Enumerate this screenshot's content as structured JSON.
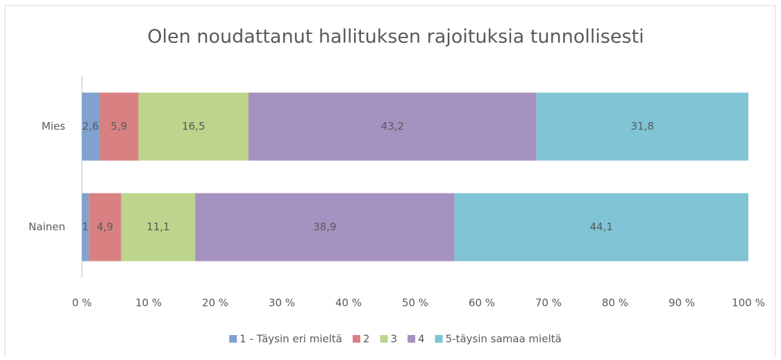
{
  "chart_data": {
    "type": "stacked-barh",
    "title": "Olen noudattanut hallituksen rajoituksia tunnollisesti",
    "categories": [
      "Mies",
      "Nainen"
    ],
    "series": [
      {
        "name": "1 - Täysin eri mieltä",
        "color": "#7fa2cf",
        "values": [
          2.6,
          1
        ],
        "value_labels": [
          "2,6",
          "1"
        ]
      },
      {
        "name": "2",
        "color": "#d98182",
        "values": [
          5.9,
          4.9
        ],
        "value_labels": [
          "5,9",
          "4,9"
        ]
      },
      {
        "name": "3",
        "color": "#bcd48b",
        "values": [
          16.5,
          11.1
        ],
        "value_labels": [
          "16,5",
          "11,1"
        ]
      },
      {
        "name": "4",
        "color": "#a592c1",
        "values": [
          43.2,
          38.9
        ],
        "value_labels": [
          "43,2",
          "38,9"
        ]
      },
      {
        "name": "5-täysin samaa mieltä",
        "color": "#80c4d6",
        "values": [
          31.8,
          44.1
        ],
        "value_labels": [
          "31,8",
          "44,1"
        ]
      }
    ],
    "xlim": [
      0,
      100
    ],
    "xticks": [
      {
        "value": 0,
        "label": "0 %"
      },
      {
        "value": 10,
        "label": "10 %"
      },
      {
        "value": 20,
        "label": "20 %"
      },
      {
        "value": 30,
        "label": "30 %"
      },
      {
        "value": 40,
        "label": "40 %"
      },
      {
        "value": 50,
        "label": "50 %"
      },
      {
        "value": 60,
        "label": "60 %"
      },
      {
        "value": 70,
        "label": "70 %"
      },
      {
        "value": 80,
        "label": "80 %"
      },
      {
        "value": 90,
        "label": "90 %"
      },
      {
        "value": 100,
        "label": "100 %"
      }
    ],
    "grid": false,
    "legend": "bottom"
  }
}
